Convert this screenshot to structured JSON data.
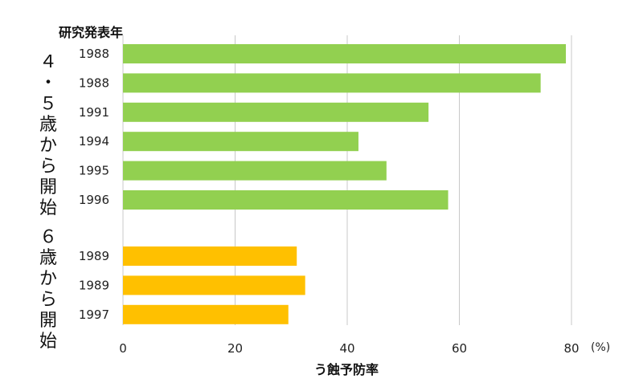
{
  "chart_data": {
    "type": "bar",
    "orientation": "horizontal",
    "xlabel": "う蝕予防率",
    "ylabel": "研究発表年",
    "unit": "(%)",
    "xlim": [
      0,
      80
    ],
    "xticks": [
      0,
      20,
      40,
      60,
      80
    ],
    "grid": true,
    "groups": [
      {
        "label": "４・５歳から開始",
        "color": "#92d050",
        "categories": [
          "1988",
          "1988",
          "1991",
          "1994",
          "1995",
          "1996"
        ],
        "values": [
          79,
          74.5,
          54.5,
          42,
          47,
          58
        ]
      },
      {
        "label": "６歳から開始",
        "color": "#ffc000",
        "categories": [
          "1989",
          "1989",
          "1997"
        ],
        "values": [
          31,
          32.5,
          29.5
        ]
      }
    ]
  }
}
